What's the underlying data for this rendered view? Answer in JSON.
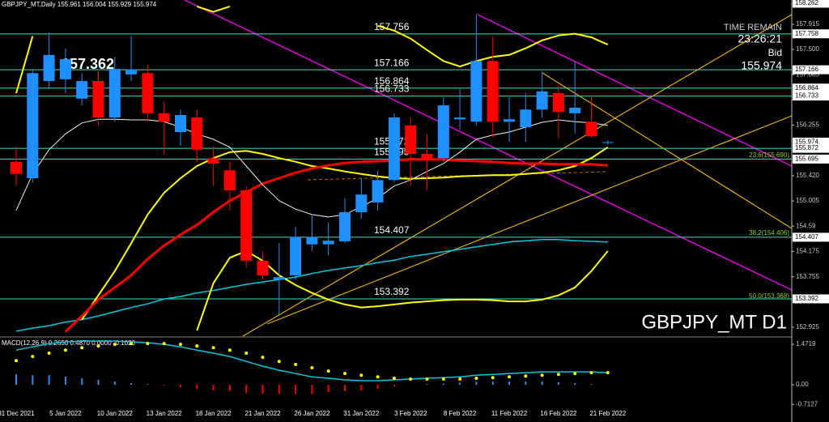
{
  "chart_data": [
    {
      "type": "candlestick",
      "title": "GBPJPY_MT,Daily 155.961 156.004 155.929 155.974",
      "watermark": "GBPJPY_MT D1",
      "categories": [
        "31 Dec 2021",
        null,
        null,
        "5 Jan 2022",
        null,
        null,
        "10 Jan 2022",
        null,
        null,
        "13 Jan 2022",
        null,
        null,
        "18 Jan 2022",
        null,
        null,
        "21 Jan 2022",
        null,
        null,
        "26 Jan 2022",
        null,
        null,
        "31 Jan 2022",
        null,
        null,
        "3 Feb 2022",
        null,
        null,
        "8 Feb 2022",
        null,
        null,
        "11 Feb 2022",
        null,
        null,
        "16 Feb 2022",
        null,
        null,
        "21 Feb 2022"
      ],
      "open": [
        155.65,
        155.38,
        156.98,
        157.01,
        156.69,
        156.98,
        156.38,
        157.09,
        157.11,
        156.45,
        156.14,
        156.38,
        155.71,
        155.51,
        155.18,
        154.02,
        153.71,
        153.78,
        154.29,
        154.29,
        154.34,
        154.82,
        154.98,
        155.35,
        156.25,
        155.78,
        155.71,
        156.35,
        156.31,
        157.31,
        156.31,
        156.22,
        156.51,
        156.78,
        156.45,
        156.31,
        155.961
      ],
      "high": [
        155.91,
        157.18,
        157.78,
        157.52,
        157.11,
        157.14,
        157.38,
        157.72,
        157.25,
        156.65,
        156.51,
        156.51,
        155.91,
        155.65,
        155.25,
        154.18,
        154.31,
        154.58,
        154.78,
        154.65,
        155.05,
        155.38,
        155.51,
        156.45,
        156.38,
        156.11,
        156.71,
        156.85,
        158.08,
        157.72,
        156.71,
        156.78,
        157.14,
        156.91,
        157.31,
        156.74,
        156.004
      ],
      "low": [
        155.25,
        155.31,
        156.85,
        156.78,
        156.58,
        156.25,
        156.31,
        156.98,
        156.31,
        155.78,
        155.91,
        155.65,
        155.25,
        154.85,
        153.91,
        153.71,
        153.11,
        153.71,
        154.18,
        154.11,
        154.31,
        154.71,
        154.85,
        155.31,
        155.25,
        155.18,
        155.65,
        156.18,
        156.25,
        156.05,
        155.98,
        155.98,
        156.38,
        156.05,
        156.11,
        156.05,
        155.929
      ],
      "close": [
        155.45,
        157.11,
        157.41,
        157.34,
        156.98,
        156.38,
        157.18,
        157.17,
        156.45,
        156.31,
        156.42,
        155.85,
        155.62,
        155.18,
        154.02,
        153.78,
        153.75,
        154.41,
        154.41,
        154.35,
        154.82,
        155.11,
        155.35,
        156.38,
        155.78,
        155.71,
        156.58,
        156.38,
        157.31,
        156.31,
        156.35,
        156.51,
        156.81,
        156.47,
        156.54,
        156.07,
        155.974
      ],
      "up_color": "#1e90ff",
      "down_color": "#ff0000",
      "overlays": [
        {
          "color": "#00c8e0",
          "width": 1.5,
          "values": [
            152.86,
            152.91,
            152.95,
            153.01,
            153.05,
            153.11,
            153.18,
            153.25,
            153.31,
            153.39,
            153.43,
            153.49,
            153.53,
            153.58,
            153.63,
            153.67,
            153.71,
            153.75,
            153.81,
            153.86,
            153.9,
            153.94,
            153.99,
            154.03,
            154.09,
            154.13,
            154.17,
            154.21,
            154.25,
            154.29,
            154.33,
            154.35,
            154.37,
            154.37,
            154.35,
            154.34,
            154.33
          ]
        },
        {
          "color": "#ffff00",
          "width": 2,
          "values": [
            156.78,
            157.72,
            null,
            null,
            null,
            null,
            null,
            null,
            null,
            null,
            null,
            158.21,
            158.12,
            158.21,
            null,
            null,
            null,
            null,
            null,
            null,
            null,
            null,
            157.89,
            157.81,
            157.68,
            157.49,
            157.31,
            157.22,
            157.31,
            157.38,
            157.41,
            157.52,
            157.65,
            157.73,
            157.76,
            157.7,
            157.58
          ]
        },
        {
          "color": "#ffff00",
          "width": 2,
          "values": [
            null,
            null,
            null,
            null,
            153.05,
            153.45,
            153.85,
            154.31,
            154.78,
            155.14,
            155.38,
            155.58,
            155.71,
            155.81,
            155.83,
            155.78,
            155.71,
            155.65,
            155.58,
            155.54,
            155.49,
            155.45,
            155.41,
            155.38,
            155.37,
            155.38,
            155.39,
            155.41,
            155.42,
            155.43,
            155.43,
            155.45,
            155.47,
            155.51,
            155.58,
            155.71,
            155.89
          ]
        },
        {
          "color": "#ffff00",
          "width": 2,
          "values": [
            null,
            null,
            null,
            null,
            null,
            null,
            null,
            null,
            null,
            null,
            null,
            152.87,
            153.65,
            154.07,
            154.18,
            154.02,
            153.78,
            153.62,
            153.49,
            153.38,
            153.3,
            153.25,
            153.27,
            153.3,
            153.33,
            153.35,
            153.37,
            153.38,
            153.38,
            153.37,
            153.35,
            153.35,
            153.38,
            153.45,
            153.58,
            153.85,
            154.18
          ]
        },
        {
          "color": "#ff0000",
          "width": 3,
          "values": [
            null,
            null,
            null,
            152.85,
            153.11,
            153.38,
            153.58,
            153.78,
            154.05,
            154.27,
            154.45,
            154.61,
            154.82,
            155.01,
            155.15,
            155.29,
            155.38,
            155.47,
            155.54,
            155.59,
            155.63,
            155.65,
            155.66,
            155.67,
            155.69,
            155.69,
            155.69,
            155.67,
            155.66,
            155.65,
            155.63,
            155.62,
            155.62,
            155.61,
            155.61,
            155.61,
            155.59
          ]
        },
        {
          "color": "#f0f0f0",
          "width": 1,
          "values": [
            154.85,
            155.45,
            155.85,
            156.11,
            156.29,
            156.35,
            156.35,
            156.34,
            156.34,
            156.31,
            156.22,
            156.11,
            156.02,
            155.89,
            155.58,
            155.27,
            155.01,
            154.87,
            154.78,
            154.74,
            154.78,
            154.91,
            155.05,
            155.25,
            155.35,
            155.49,
            155.62,
            155.81,
            156.02,
            156.09,
            156.14,
            156.22,
            156.3,
            156.34,
            156.31,
            156.29,
            156.25
          ]
        }
      ],
      "levels": [
        157.756,
        157.166,
        156.864,
        156.733,
        155.872,
        155.695,
        154.407,
        153.392
      ],
      "level_color": "#40e0c0",
      "axis_boxes": [
        158.262,
        157.758,
        157.166,
        156.864,
        156.733,
        155.974,
        155.872,
        155.695,
        154.407,
        153.392
      ],
      "fib_levels": [
        {
          "value": 155.69,
          "label": "23.6(155.690)"
        },
        {
          "value": 154.406,
          "label": "38.2(154.406)"
        },
        {
          "value": 153.368,
          "label": "50.0(153.368)"
        }
      ],
      "fib_color": "#9acd32",
      "high_label": 157.362,
      "time_remain": "TIME REMAIN",
      "timer": "23:26:21",
      "bid_label": "Bid",
      "bid": 155.974,
      "ylim": [
        152.778,
        158.315
      ],
      "yticks": [
        152.925,
        153.755,
        154.175,
        154.59,
        {
          "value": 155.005,
          "label": "155.005"
        },
        {
          "value": 155.42,
          "label": "155.420"
        },
        156.255,
        157.085,
        {
          "value": 157.5,
          "label": "157.500"
        },
        157.915
      ]
    },
    {
      "type": "macd",
      "title": "MACD(12,26,9) 0.2650 0.4870 0.0000 -0.1020",
      "pos_color": "#1e90ff",
      "neg_color": "#ff0000",
      "histogram": [
        0.38,
        0.35,
        0.35,
        0.3,
        0.24,
        0.18,
        0.12,
        0.06,
        0.03,
        -0.03,
        -0.09,
        -0.15,
        -0.2,
        -0.23,
        -0.3,
        -0.32,
        -0.32,
        -0.33,
        -0.33,
        -0.26,
        -0.23,
        -0.2,
        -0.14,
        -0.06,
        0,
        0.03,
        0.05,
        0.08,
        0.11,
        0.12,
        0.12,
        0.12,
        0.12,
        0.09,
        0.06,
        0.03,
        0
      ],
      "macd": {
        "color": "#00c8e0",
        "values": [
          1.26,
          1.38,
          1.5,
          1.56,
          1.59,
          1.59,
          1.59,
          1.56,
          1.53,
          1.47,
          1.38,
          1.26,
          1.15,
          1.03,
          0.85,
          0.68,
          0.53,
          0.41,
          0.29,
          0.24,
          0.18,
          0.15,
          0.15,
          0.18,
          0.21,
          0.24,
          0.26,
          0.29,
          0.35,
          0.38,
          0.41,
          0.44,
          0.47,
          0.47,
          0.47,
          0.47,
          0.44
        ]
      },
      "signal": {
        "color": "#ffff00",
        "values": [
          0.88,
          1.03,
          1.15,
          1.26,
          1.35,
          1.41,
          1.47,
          1.5,
          1.5,
          1.5,
          1.47,
          1.41,
          1.35,
          1.26,
          1.15,
          1.0,
          0.85,
          0.74,
          0.62,
          0.5,
          0.41,
          0.35,
          0.29,
          0.24,
          0.21,
          0.21,
          0.21,
          0.21,
          0.24,
          0.26,
          0.29,
          0.32,
          0.35,
          0.38,
          0.41,
          0.44,
          0.44
        ]
      },
      "ylim": [
        -1.35,
        1.68
      ],
      "yticks": [
        -0.7127,
        {
          "value": 0,
          "label": "0.00"
        },
        1.4719
      ]
    }
  ]
}
